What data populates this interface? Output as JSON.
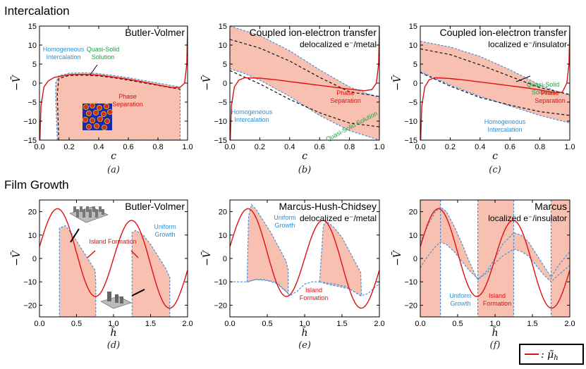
{
  "sections": {
    "intercalation": "Intercalation",
    "film_growth": "Film Growth"
  },
  "legend": {
    "label": "— : μ̃h"
  },
  "colors": {
    "fill": "#f8c0b0",
    "boundary": "#4a90d9",
    "curve": "#e01010",
    "spinodal": "#111111",
    "inset_bg": "#1a2aa8",
    "inset_dot": "#c83020"
  },
  "chart_data": [
    {
      "type": "area",
      "id": "a",
      "title": "Butler-Volmer",
      "subtitle": "",
      "caption": "(a)",
      "xlabel": "c",
      "ylabel": "−V̄",
      "xlim": [
        0,
        1
      ],
      "ylim": [
        -15,
        15
      ],
      "xticks": [
        "0.0",
        "0.2",
        "0.4",
        "0.6",
        "0.8",
        "1.0"
      ],
      "yticks": [
        "15",
        "10",
        "5",
        "0",
        "−5",
        "−10",
        "−15"
      ],
      "annotations": [
        {
          "text": "Homogeneous",
          "color": "#2a8fd8"
        },
        {
          "text": "Intercalation",
          "color": "#2a8fd8"
        },
        {
          "text": "Quasi-Solid",
          "color": "#20a040"
        },
        {
          "text": "Solution",
          "color": "#20a040"
        },
        {
          "text": "Phase",
          "color": "#e01010"
        },
        {
          "text": "Separation",
          "color": "#e01010"
        }
      ],
      "curve_points": [
        [
          0.003,
          -15
        ],
        [
          0.01,
          -6
        ],
        [
          0.03,
          -1
        ],
        [
          0.06,
          0.6
        ],
        [
          0.1,
          1.5
        ],
        [
          0.2,
          2.2
        ],
        [
          0.3,
          2.3
        ],
        [
          0.4,
          2.1
        ],
        [
          0.5,
          1.6
        ],
        [
          0.6,
          1.0
        ],
        [
          0.7,
          0.3
        ],
        [
          0.8,
          -0.5
        ],
        [
          0.9,
          -1.2
        ],
        [
          0.95,
          -1.1
        ],
        [
          0.98,
          0
        ],
        [
          0.995,
          5
        ],
        [
          1.0,
          15
        ]
      ],
      "region_upper": [
        [
          0.12,
          -15
        ],
        [
          0.11,
          -4
        ],
        [
          0.11,
          0
        ],
        [
          0.13,
          1.9
        ],
        [
          0.2,
          2.6
        ],
        [
          0.3,
          2.7
        ],
        [
          0.4,
          2.5
        ],
        [
          0.5,
          2.0
        ],
        [
          0.6,
          1.4
        ],
        [
          0.7,
          0.7
        ],
        [
          0.8,
          0
        ],
        [
          0.9,
          -0.7
        ],
        [
          0.95,
          -1.1
        ]
      ],
      "region_lower": [
        [
          0.14,
          -15
        ],
        [
          0.95,
          -15
        ],
        [
          0.95,
          -1.1
        ]
      ],
      "spinodal_upper": [
        [
          0.13,
          -15
        ],
        [
          0.12,
          -3
        ],
        [
          0.13,
          1.2
        ],
        [
          0.2,
          2.0
        ],
        [
          0.3,
          2.1
        ],
        [
          0.4,
          1.9
        ],
        [
          0.5,
          1.4
        ],
        [
          0.6,
          0.8
        ],
        [
          0.7,
          0.1
        ],
        [
          0.8,
          -0.6
        ],
        [
          0.9,
          -1.3
        ],
        [
          0.95,
          -1.6
        ]
      ]
    },
    {
      "type": "area",
      "id": "b",
      "title": "Coupled ion-electron transfer",
      "subtitle": "delocalized e⁻/metal",
      "caption": "(b)",
      "xlabel": "c",
      "ylabel": "−V̄",
      "xlim": [
        0,
        1
      ],
      "ylim": [
        -15,
        15
      ],
      "xticks": [
        "0.0",
        "0.2",
        "0.4",
        "0.6",
        "0.8",
        "1.0"
      ],
      "yticks": [
        "15",
        "10",
        "5",
        "0",
        "−5",
        "−10",
        "−15"
      ],
      "annotations": [
        {
          "text": "Phase",
          "color": "#e01010"
        },
        {
          "text": "Separation",
          "color": "#e01010"
        },
        {
          "text": "Homogeneous",
          "color": "#2a8fd8"
        },
        {
          "text": "Intercalation",
          "color": "#2a8fd8"
        },
        {
          "text": "Quasi-Solid Solution",
          "color": "#20a040"
        }
      ],
      "curve_points": [
        [
          0.003,
          -15
        ],
        [
          0.01,
          -6
        ],
        [
          0.03,
          -1
        ],
        [
          0.06,
          0.8
        ],
        [
          0.1,
          1.4
        ],
        [
          0.2,
          1.3
        ],
        [
          0.3,
          0.9
        ],
        [
          0.4,
          0.4
        ],
        [
          0.5,
          -0.1
        ],
        [
          0.6,
          -0.6
        ],
        [
          0.7,
          -1.1
        ],
        [
          0.8,
          -1.6
        ],
        [
          0.9,
          -2.0
        ],
        [
          0.95,
          -1.7
        ],
        [
          0.98,
          0
        ],
        [
          0.995,
          5
        ],
        [
          1.0,
          15
        ]
      ],
      "region_upper": [
        [
          0,
          15
        ],
        [
          0.2,
          12.5
        ],
        [
          0.4,
          8.5
        ],
        [
          0.6,
          3.5
        ],
        [
          0.8,
          -1.0
        ],
        [
          0.9,
          -2.5
        ],
        [
          1.0,
          -3.8
        ]
      ],
      "region_lower": [
        [
          0,
          3.8
        ],
        [
          0.1,
          2.5
        ],
        [
          0.2,
          0.8
        ],
        [
          0.4,
          -3.5
        ],
        [
          0.6,
          -8.5
        ],
        [
          0.8,
          -12.5
        ],
        [
          1.0,
          -15
        ]
      ],
      "spinodal_upper": [
        [
          0,
          11.5
        ],
        [
          0.2,
          9.2
        ],
        [
          0.4,
          5.8
        ],
        [
          0.6,
          1.5
        ],
        [
          0.8,
          -2.3
        ],
        [
          1.0,
          -3.5
        ]
      ],
      "spinodal_lower": [
        [
          0,
          3.3
        ],
        [
          0.2,
          -0.2
        ],
        [
          0.4,
          -4.3
        ],
        [
          0.6,
          -7.8
        ],
        [
          0.8,
          -10.5
        ],
        [
          1.0,
          -11.5
        ]
      ]
    },
    {
      "type": "area",
      "id": "c",
      "title": "Coupled ion-electron transfer",
      "subtitle": "localized e⁻/insulator",
      "caption": "(c)",
      "xlabel": "c",
      "ylabel": "−V̄",
      "xlim": [
        0,
        1
      ],
      "ylim": [
        -15,
        15
      ],
      "xticks": [
        "0.0",
        "0.2",
        "0.4",
        "0.6",
        "0.8",
        "1.0"
      ],
      "yticks": [
        "15",
        "10",
        "5",
        "0",
        "−5",
        "−10",
        "−15"
      ],
      "annotations": [
        {
          "text": "Quasi-Solid",
          "color": "#20a040"
        },
        {
          "text": "Solution",
          "color": "#20a040"
        },
        {
          "text": "Phase",
          "color": "#e01010"
        },
        {
          "text": "Separation",
          "color": "#e01010"
        },
        {
          "text": "Homogeneous",
          "color": "#2a8fd8"
        },
        {
          "text": "Intercalation",
          "color": "#2a8fd8"
        }
      ],
      "curve_points": [
        [
          0.003,
          -15
        ],
        [
          0.01,
          -6
        ],
        [
          0.03,
          -1
        ],
        [
          0.06,
          0.9
        ],
        [
          0.1,
          1.4
        ],
        [
          0.2,
          1.2
        ],
        [
          0.3,
          0.8
        ],
        [
          0.4,
          0.3
        ],
        [
          0.5,
          -0.2
        ],
        [
          0.6,
          -0.7
        ],
        [
          0.7,
          -1.2
        ],
        [
          0.8,
          -1.8
        ],
        [
          0.9,
          -2.6
        ],
        [
          0.95,
          -2.4
        ],
        [
          0.98,
          0
        ],
        [
          0.995,
          5
        ],
        [
          1.0,
          15
        ]
      ],
      "region_upper": [
        [
          0,
          11
        ],
        [
          0.2,
          9.5
        ],
        [
          0.4,
          7.0
        ],
        [
          0.6,
          3.5
        ],
        [
          0.8,
          -0.5
        ],
        [
          0.9,
          -2.0
        ],
        [
          1.0,
          -3.2
        ]
      ],
      "region_lower": [
        [
          0,
          3.0
        ],
        [
          0.2,
          -0.5
        ],
        [
          0.4,
          -3.5
        ],
        [
          0.6,
          -6.0
        ],
        [
          0.8,
          -8.5
        ],
        [
          1.0,
          -10.5
        ]
      ],
      "spinodal_upper": [
        [
          0,
          9.0
        ],
        [
          0.2,
          7.5
        ],
        [
          0.4,
          4.8
        ],
        [
          0.6,
          1.8
        ],
        [
          0.8,
          -1.2
        ],
        [
          1.0,
          -3.0
        ]
      ],
      "spinodal_lower": [
        [
          0,
          2.8
        ],
        [
          0.2,
          -0.8
        ],
        [
          0.4,
          -3.8
        ],
        [
          0.6,
          -5.8
        ],
        [
          0.8,
          -7.5
        ],
        [
          1.0,
          -8.5
        ]
      ]
    },
    {
      "type": "area",
      "id": "d",
      "title": "Butler-Volmer",
      "subtitle": "",
      "caption": "(d)",
      "xlabel": "h̃",
      "ylabel": "−V̄",
      "xlim": [
        0,
        2
      ],
      "ylim": [
        -25,
        25
      ],
      "xticks": [
        "0.0",
        "0.5",
        "1.0",
        "1.5",
        "2.0"
      ],
      "yticks": [
        "20",
        "10",
        "0",
        "−10",
        "−20"
      ],
      "annotations": [
        {
          "text": "Island Formation",
          "color": "#e01010"
        },
        {
          "text": "Uniform",
          "color": "#2a8fd8"
        },
        {
          "text": "Growth",
          "color": "#2a8fd8"
        }
      ],
      "curve": "17.5*cos(2*pi*(h-0.25)) + 5*(1-h)",
      "region_polys": [
        [
          [
            0.27,
            -27
          ],
          [
            0.27,
            13
          ],
          [
            0.35,
            14
          ],
          [
            0.45,
            10
          ],
          [
            0.55,
            5
          ],
          [
            0.65,
            0
          ],
          [
            0.75,
            -5
          ],
          [
            0.76,
            -10
          ],
          [
            0.76,
            -27
          ]
        ],
        [
          [
            1.25,
            -27
          ],
          [
            1.25,
            11
          ],
          [
            1.3,
            12
          ],
          [
            1.4,
            10
          ],
          [
            1.5,
            6
          ],
          [
            1.6,
            1
          ],
          [
            1.7,
            -4
          ],
          [
            1.76,
            -8
          ],
          [
            1.76,
            -27
          ]
        ]
      ]
    },
    {
      "type": "area",
      "id": "e",
      "title": "Marcus-Hush-Chidsey",
      "subtitle": "delocalized e⁻/metal",
      "caption": "(e)",
      "xlabel": "h̃",
      "ylabel": "−V̄",
      "xlim": [
        0,
        2
      ],
      "ylim": [
        -25,
        25
      ],
      "xticks": [
        "0.0",
        "0.5",
        "1.0",
        "1.5",
        "2.0"
      ],
      "yticks": [
        "20",
        "10",
        "0",
        "−10",
        "−20"
      ],
      "annotations": [
        {
          "text": "Uniform",
          "color": "#2a8fd8"
        },
        {
          "text": "Growth",
          "color": "#2a8fd8"
        },
        {
          "text": "Island",
          "color": "#e01010"
        },
        {
          "text": "Formation",
          "color": "#e01010"
        }
      ],
      "curve": "17.5*cos(2*pi*(h-0.25)) + 5*(1-h)",
      "region_polys": [
        [
          [
            0.23,
            -10
          ],
          [
            0.25,
            18
          ],
          [
            0.29,
            23
          ],
          [
            0.35,
            21
          ],
          [
            0.45,
            16
          ],
          [
            0.55,
            11
          ],
          [
            0.65,
            5
          ],
          [
            0.75,
            -1
          ],
          [
            0.78,
            -5
          ],
          [
            0.78,
            -15
          ],
          [
            0.6,
            -10
          ],
          [
            0.45,
            -9
          ],
          [
            0.35,
            -9
          ],
          [
            0.23,
            -10
          ]
        ],
        [
          [
            1.2,
            -10
          ],
          [
            1.25,
            14
          ],
          [
            1.29,
            16
          ],
          [
            1.4,
            13
          ],
          [
            1.5,
            9
          ],
          [
            1.6,
            3
          ],
          [
            1.75,
            -6
          ],
          [
            1.76,
            -16
          ],
          [
            1.6,
            -13
          ],
          [
            1.45,
            -12
          ],
          [
            1.3,
            -11
          ],
          [
            1.2,
            -10
          ]
        ]
      ],
      "boundary_lines": [
        [
          [
            0,
            -10
          ],
          [
            0.15,
            -10
          ],
          [
            0.25,
            -10
          ],
          [
            0.29,
            -9.5
          ],
          [
            0.35,
            -9
          ],
          [
            0.5,
            -9.5
          ],
          [
            0.65,
            -11
          ],
          [
            0.75,
            -14
          ],
          [
            0.8,
            -16
          ],
          [
            0.9,
            -14
          ],
          [
            1.0,
            -11
          ],
          [
            1.1,
            -10
          ],
          [
            1.2,
            -10
          ]
        ],
        [
          [
            1.2,
            -10
          ],
          [
            1.4,
            -11
          ],
          [
            1.55,
            -12
          ],
          [
            1.65,
            -14
          ],
          [
            1.75,
            -16
          ],
          [
            1.85,
            -15
          ],
          [
            1.95,
            -12
          ],
          [
            2.0,
            -11
          ]
        ]
      ]
    },
    {
      "type": "area",
      "id": "f",
      "title": "Marcus",
      "subtitle": "localized e⁻/insulator",
      "caption": "(f)",
      "xlabel": "h̃",
      "ylabel": "−V̄",
      "xlim": [
        0,
        2
      ],
      "ylim": [
        -25,
        25
      ],
      "xticks": [
        "0.0",
        "0.5",
        "1.0",
        "1.5",
        "2.0"
      ],
      "yticks": [
        "20",
        "10",
        "0",
        "−10",
        "−20"
      ],
      "annotations": [
        {
          "text": "Uniform",
          "color": "#2a8fd8"
        },
        {
          "text": "Growth",
          "color": "#2a8fd8"
        },
        {
          "text": "Island",
          "color": "#e01010"
        },
        {
          "text": "Formation",
          "color": "#e01010"
        }
      ],
      "curve": "17.5*cos(2*pi*(h-0.25)) + 5*(1-h)",
      "full_bands": [
        [
          0,
          0.27
        ],
        [
          0.77,
          1.25
        ],
        [
          1.75,
          2.0
        ]
      ],
      "upper_band": [
        [
          0,
          -4
        ],
        [
          0.1,
          1
        ],
        [
          0.2,
          5
        ],
        [
          0.27,
          7
        ],
        [
          0.35,
          6
        ],
        [
          0.45,
          3
        ],
        [
          0.55,
          -1
        ],
        [
          0.65,
          -5
        ],
        [
          0.75,
          -8
        ],
        [
          0.77,
          -9
        ],
        [
          0.9,
          -6
        ],
        [
          1.0,
          -2
        ],
        [
          1.1,
          1
        ],
        [
          1.25,
          4
        ],
        [
          1.35,
          3
        ],
        [
          1.45,
          1
        ],
        [
          1.55,
          -3
        ],
        [
          1.65,
          -7
        ],
        [
          1.75,
          -10
        ],
        [
          1.85,
          -7
        ],
        [
          2.0,
          -3
        ]
      ],
      "lower_band": [
        [
          0,
          -27
        ],
        [
          0.27,
          -27
        ]
      ],
      "top_band": [
        [
          0,
          7
        ],
        [
          0.1,
          14
        ],
        [
          0.2,
          20
        ],
        [
          0.27,
          22
        ],
        [
          0.35,
          20
        ],
        [
          0.45,
          14
        ],
        [
          0.55,
          7
        ],
        [
          0.65,
          -1
        ],
        [
          0.75,
          -8
        ],
        [
          0.77,
          -9
        ],
        [
          0.9,
          -5
        ],
        [
          1.0,
          0
        ],
        [
          1.1,
          6
        ],
        [
          1.25,
          11
        ],
        [
          1.35,
          10
        ],
        [
          1.45,
          7
        ],
        [
          1.55,
          2
        ],
        [
          1.65,
          -3
        ],
        [
          1.75,
          -8
        ],
        [
          1.85,
          -3
        ],
        [
          2.0,
          3
        ]
      ]
    }
  ]
}
